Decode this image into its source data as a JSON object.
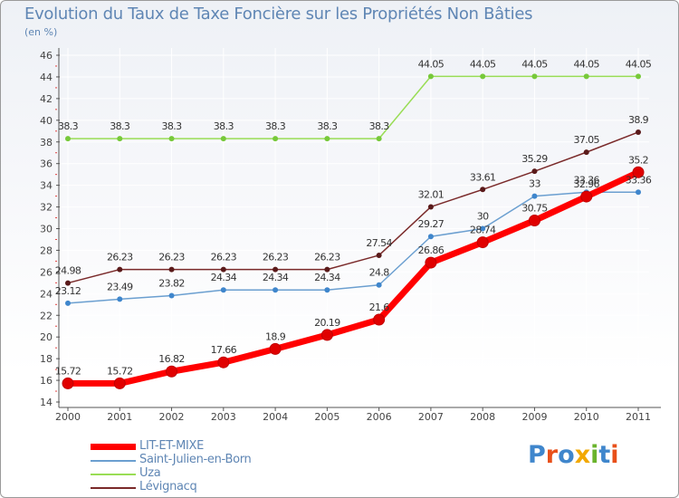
{
  "chart_data": {
    "type": "line",
    "title": "Evolution du Taux de Taxe Foncière sur les Propriétés Non Bâties",
    "unit_label": "(en %)",
    "x": [
      "2000",
      "2001",
      "2002",
      "2003",
      "2004",
      "2005",
      "2006",
      "2007",
      "2008",
      "2009",
      "2010",
      "2011"
    ],
    "ylim": [
      14,
      46
    ],
    "yticks": [
      "14",
      "16",
      "18",
      "20",
      "22",
      "24",
      "26",
      "28",
      "30",
      "32",
      "34",
      "36",
      "38",
      "40",
      "42",
      "44",
      "46"
    ],
    "series": [
      {
        "name": "LIT-ET-MIXE",
        "color": "#ff0000",
        "marker": "#e00000",
        "values": [
          15.72,
          15.72,
          16.82,
          17.66,
          18.9,
          20.19,
          21.6,
          26.86,
          28.74,
          30.75,
          32.96,
          35.2
        ],
        "labels": [
          "15.72",
          "15.72",
          "16.82",
          "17.66",
          "18.9",
          "20.19",
          "21.6",
          "26.86",
          "28.74",
          "30.75",
          "32.96",
          "35.2"
        ]
      },
      {
        "name": "Saint-Julien-en-Born",
        "color": "#6b9fd0",
        "marker": "#3f86cc",
        "values": [
          23.12,
          23.49,
          23.82,
          24.34,
          24.34,
          24.34,
          24.8,
          29.27,
          30,
          33,
          33.36,
          33.36
        ],
        "labels": [
          "23.12",
          "23.49",
          "23.82",
          "24.34",
          "24.34",
          "24.34",
          "24.8",
          "29.27",
          "30",
          "33",
          "33.36",
          "33.36"
        ]
      },
      {
        "name": "Uza",
        "color": "#99dd55",
        "marker": "#77c93a",
        "values": [
          38.3,
          38.3,
          38.3,
          38.3,
          38.3,
          38.3,
          38.3,
          44.05,
          44.05,
          44.05,
          44.05,
          44.05
        ],
        "labels": [
          "38.3",
          "38.3",
          "38.3",
          "38.3",
          "38.3",
          "38.3",
          "38.3",
          "44.05",
          "44.05",
          "44.05",
          "44.05",
          "44.05"
        ]
      },
      {
        "name": "Lévignacq",
        "color": "#7a2a2a",
        "marker": "#5a1a1a",
        "values": [
          24.98,
          26.23,
          26.23,
          26.23,
          26.23,
          26.23,
          27.54,
          32.01,
          33.61,
          35.29,
          37.05,
          38.9
        ],
        "labels": [
          "24.98",
          "26.23",
          "26.23",
          "26.23",
          "26.23",
          "26.23",
          "27.54",
          "32.01",
          "33.61",
          "35.29",
          "37.05",
          "38.9"
        ]
      }
    ]
  },
  "logo": {
    "text": "Proxiti",
    "colors": [
      "#3f86cc",
      "#e8501a",
      "#3f86cc",
      "#f2a800",
      "#6ab42d",
      "#3f86cc",
      "#e8501a"
    ]
  }
}
